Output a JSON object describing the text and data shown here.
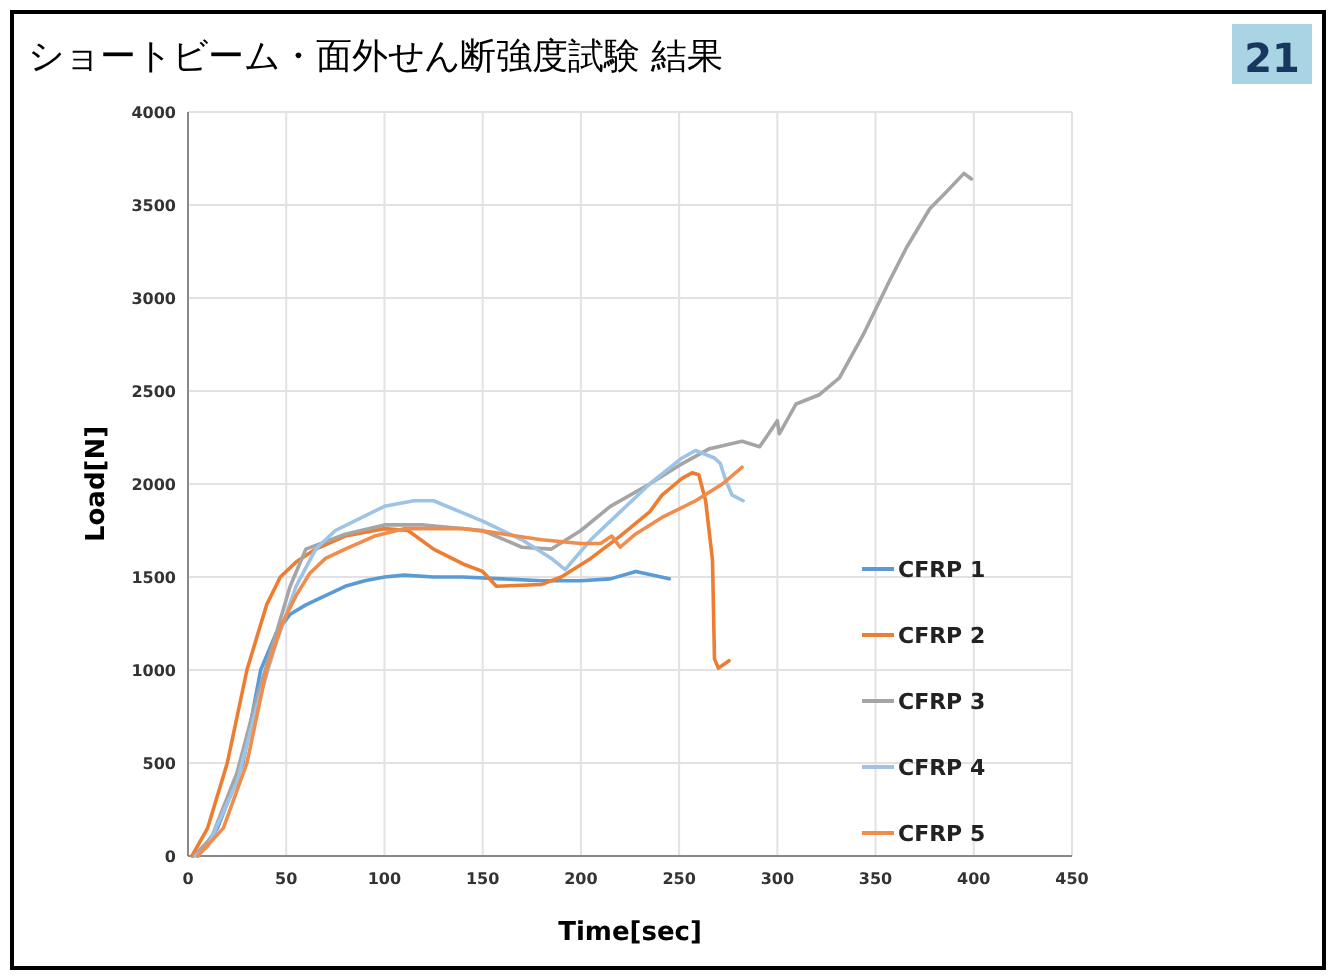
{
  "chart_data": {
    "type": "line",
    "title": "ショートビーム・面外せん断強度試験 結果",
    "annotations": [
      "21"
    ],
    "xlabel": "Time[sec]",
    "ylabel": "Load[N]",
    "xlim": [
      0,
      450
    ],
    "ylim": [
      0,
      4000
    ],
    "xticks": [
      0,
      50,
      100,
      150,
      200,
      250,
      300,
      350,
      400,
      450
    ],
    "yticks": [
      0,
      500,
      1000,
      1500,
      2000,
      2500,
      3000,
      3500,
      4000
    ],
    "grid": true,
    "legend": "right",
    "series": [
      {
        "name": "CFRP 1",
        "color": "#5b9bd5",
        "x": [
          5,
          15,
          28,
          37,
          45,
          52,
          60,
          70,
          80,
          90,
          100,
          110,
          125,
          140,
          160,
          180,
          200,
          215,
          228,
          245
        ],
        "values": [
          0,
          150,
          500,
          1000,
          1200,
          1300,
          1350,
          1400,
          1450,
          1480,
          1500,
          1510,
          1500,
          1500,
          1490,
          1480,
          1480,
          1490,
          1530,
          1490
        ]
      },
      {
        "name": "CFRP 2",
        "color": "#ed7d31",
        "x": [
          2,
          10,
          20,
          30,
          40,
          47,
          55,
          65,
          80,
          100,
          112,
          125,
          140,
          150,
          157,
          180,
          190,
          205,
          220,
          235,
          241.3,
          251.5,
          256.6,
          260,
          263.5,
          267,
          268,
          270,
          275.4
        ],
        "values": [
          0,
          150,
          500,
          1000,
          1350,
          1500,
          1580,
          1650,
          1720,
          1760,
          1750,
          1650,
          1570,
          1530,
          1450,
          1460,
          1500,
          1600,
          1720,
          1850,
          1940,
          2030,
          2060,
          2050,
          1910,
          1590,
          1060,
          1010,
          1050
        ]
      },
      {
        "name": "CFRP 3",
        "color": "#a5a5a5",
        "x": [
          3,
          12,
          25,
          35,
          45,
          52,
          60,
          80,
          100,
          120,
          150,
          170,
          185,
          200,
          215,
          235,
          250,
          265.5,
          282,
          291,
          300,
          301,
          309.5,
          321.4,
          331.6,
          343.6,
          357,
          365.7,
          377.6,
          386,
          395,
          398.8
        ],
        "values": [
          0,
          100,
          450,
          850,
          1200,
          1450,
          1650,
          1730,
          1780,
          1780,
          1750,
          1660,
          1650,
          1750,
          1880,
          2000,
          2100,
          2190,
          2230,
          2200,
          2340,
          2270,
          2430,
          2480,
          2570,
          2800,
          3090,
          3270,
          3480,
          3570,
          3670,
          3640
        ]
      },
      {
        "name": "CFRP 4",
        "color": "#9dc3e6",
        "x": [
          4,
          10,
          25,
          35,
          45,
          55,
          65,
          75,
          100,
          115,
          125,
          150,
          170,
          185,
          192,
          205,
          220,
          235,
          251.5,
          258.4,
          268,
          271,
          273.7,
          277,
          282.6
        ],
        "values": [
          0,
          50,
          400,
          800,
          1150,
          1450,
          1650,
          1750,
          1880,
          1910,
          1910,
          1800,
          1700,
          1600,
          1540,
          1700,
          1850,
          2000,
          2140,
          2180,
          2140,
          2110,
          2020,
          1940,
          1910
        ]
      },
      {
        "name": "CFRP 5",
        "color": "#f08c4c",
        "x": [
          5,
          18,
          30,
          40,
          48,
          55,
          62,
          70,
          80,
          95,
          110,
          140,
          155,
          180,
          200,
          210,
          215.7,
          220,
          227.7,
          241.3,
          258.4,
          272,
          282
        ],
        "values": [
          0,
          150,
          500,
          1000,
          1250,
          1400,
          1520,
          1600,
          1650,
          1720,
          1760,
          1760,
          1740,
          1700,
          1680,
          1680,
          1720,
          1660,
          1730,
          1820,
          1910,
          2000,
          2090
        ]
      }
    ]
  }
}
